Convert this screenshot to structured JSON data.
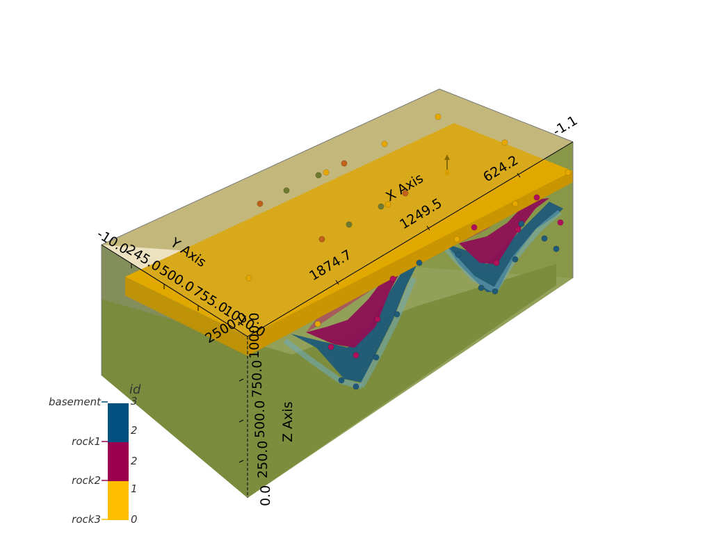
{
  "axes": {
    "x": {
      "title": "X Axis",
      "ticks": [
        "624.2",
        "1249.5",
        "1874.7",
        "2500.0"
      ],
      "end_label": "-1.1"
    },
    "y": {
      "title": "Y Axis",
      "ticks": [
        "-10.0",
        "245.0",
        "500.0",
        "755.0",
        "1010.0"
      ]
    },
    "z": {
      "title": "Z Axis",
      "ticks": [
        "0.0",
        "250.0",
        "500.0",
        "750.0",
        "1000.0"
      ]
    }
  },
  "scalar_bar": {
    "title": "id",
    "value_labels": [
      "3",
      "2",
      "2",
      "1",
      "0"
    ],
    "categories": [
      {
        "name": "basement",
        "color": "#005080"
      },
      {
        "name": "rock1",
        "color": "#9B0050"
      },
      {
        "name": "rock2",
        "color": "#FFBE00"
      },
      {
        "name": "rock3",
        "color": "#FFBE00"
      }
    ]
  },
  "colors": {
    "basement": "#728C3C",
    "rock1": "#005080",
    "rock2": "#9B0050",
    "rock3": "#E6AA00",
    "top_slab": "#E0A800",
    "box_tint": "#B29A3C"
  }
}
